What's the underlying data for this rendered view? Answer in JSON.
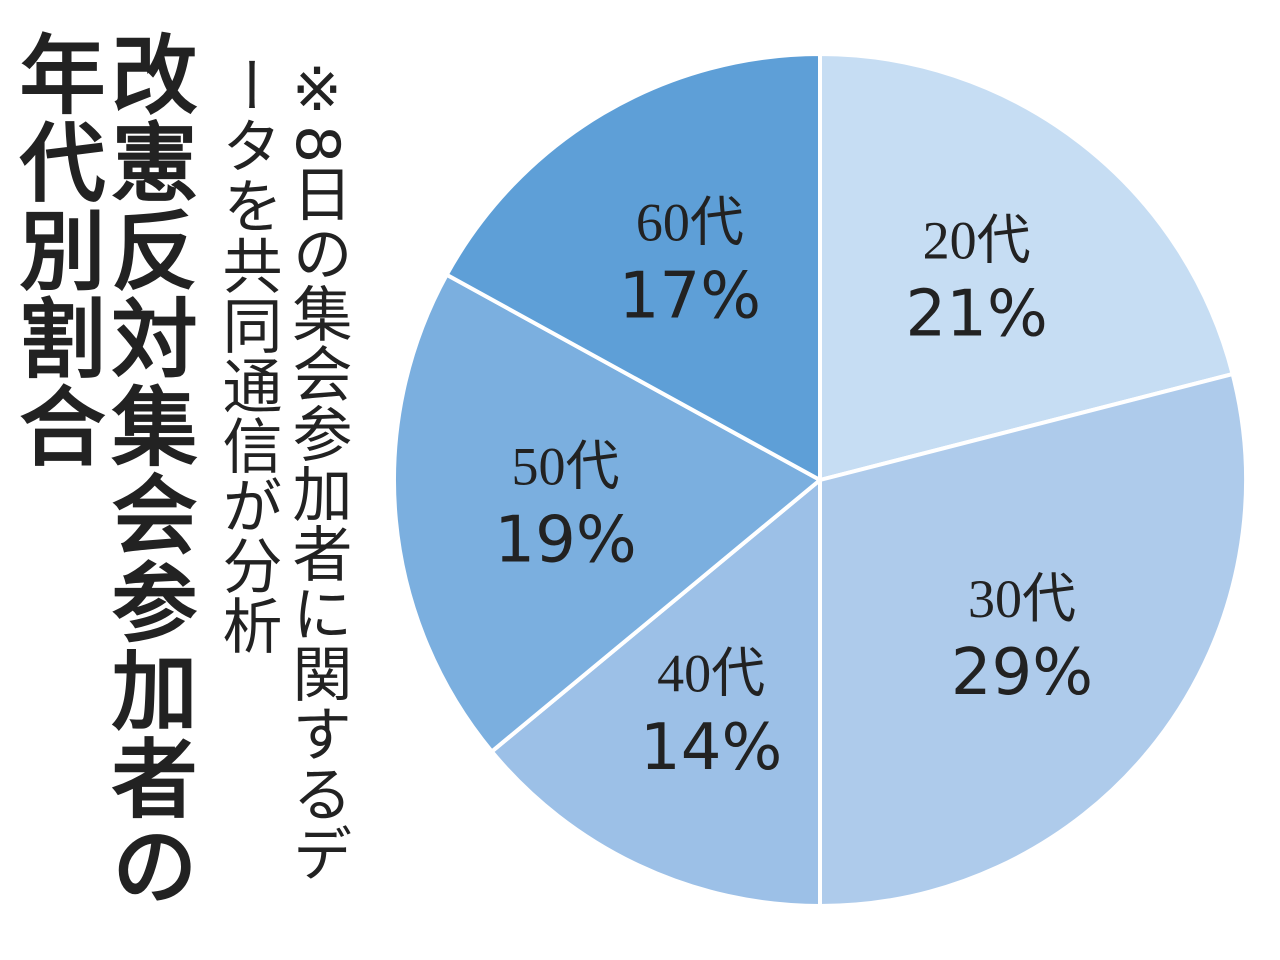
{
  "chart_data": {
    "type": "pie",
    "title": "改憲反対集会参加者の年代別割合",
    "subtitle": "※8日の集会参加者に関するデータを共同通信が分析",
    "categories": [
      "20代",
      "30代",
      "40代",
      "50代",
      "60代"
    ],
    "values": [
      21,
      29,
      14,
      19,
      17
    ],
    "value_labels": [
      "21%",
      "29%",
      "14%",
      "19%",
      "17%"
    ],
    "colors": [
      "#c6ddf3",
      "#aecbeb",
      "#9cc0e7",
      "#7bafdf",
      "#5e9fd7"
    ]
  }
}
